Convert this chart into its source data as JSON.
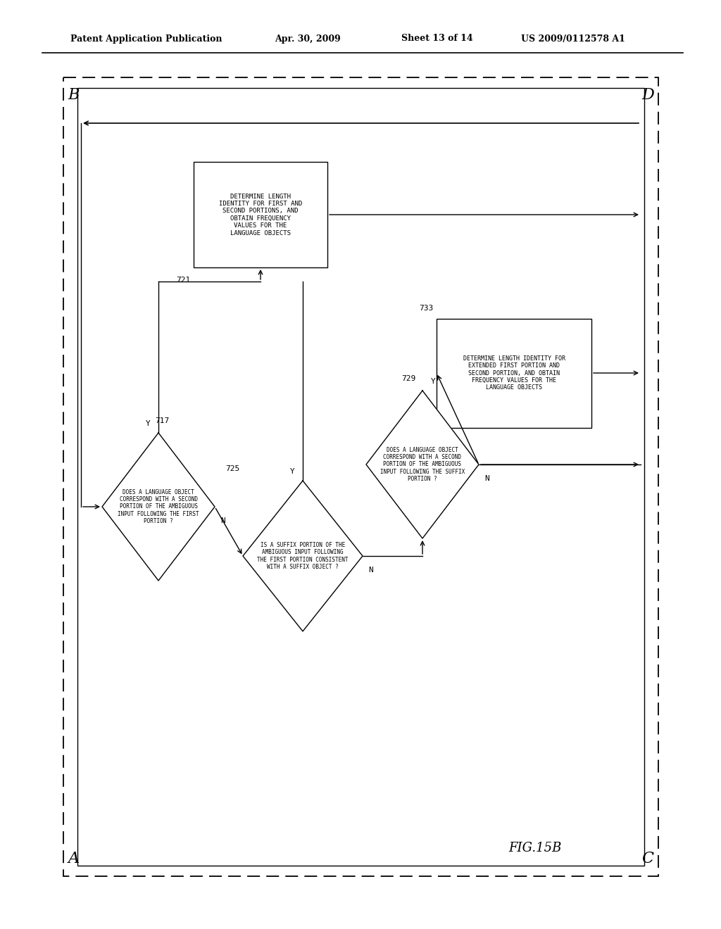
{
  "bg_color": "#ffffff",
  "header_text1": "Patent Application Publication",
  "header_text2": "Apr. 30, 2009",
  "header_text3": "Sheet 13 of 14",
  "header_text4": "US 2009/0112578 A1",
  "fig_label": "FIG.15B",
  "box721_text": "DETERMINE LENGTH\nIDENTITY FOR FIRST AND\nSECOND PORTIONS, AND\nOBTAIN FREQUENCY\nVALUES FOR THE\nLANGUAGE OBJECTS",
  "box733_text": "DETERMINE LENGTH IDENTITY FOR\nEXTENDED FIRST PORTION AND\nSECOND PORTION, AND OBTAIN\nFREQUENCY VALUES FOR THE\nLANGUAGE OBJECTS",
  "d717_text": "DOES A LANGUAGE OBJECT\nCORRESPOND WITH A SECOND\nPORTION OF THE AMBIGUOUS\nINPUT FOLLOWING THE FIRST\nPORTION ?",
  "d725_text": "IS A SUFFIX PORTION OF THE\nAMBIGUOUS INPUT FOLLOWING\nTHE FIRST PORTION CONSISTENT\nWITH A SUFFIX OBJECT ?",
  "d729_text": "DOES A LANGUAGE OBJECT\nCORRESPOND WITH A SECOND\nPORTION OF THE AMBIGUOUS\nINPUT FOLLOWING THE SUFFIX\nPORTION ?"
}
